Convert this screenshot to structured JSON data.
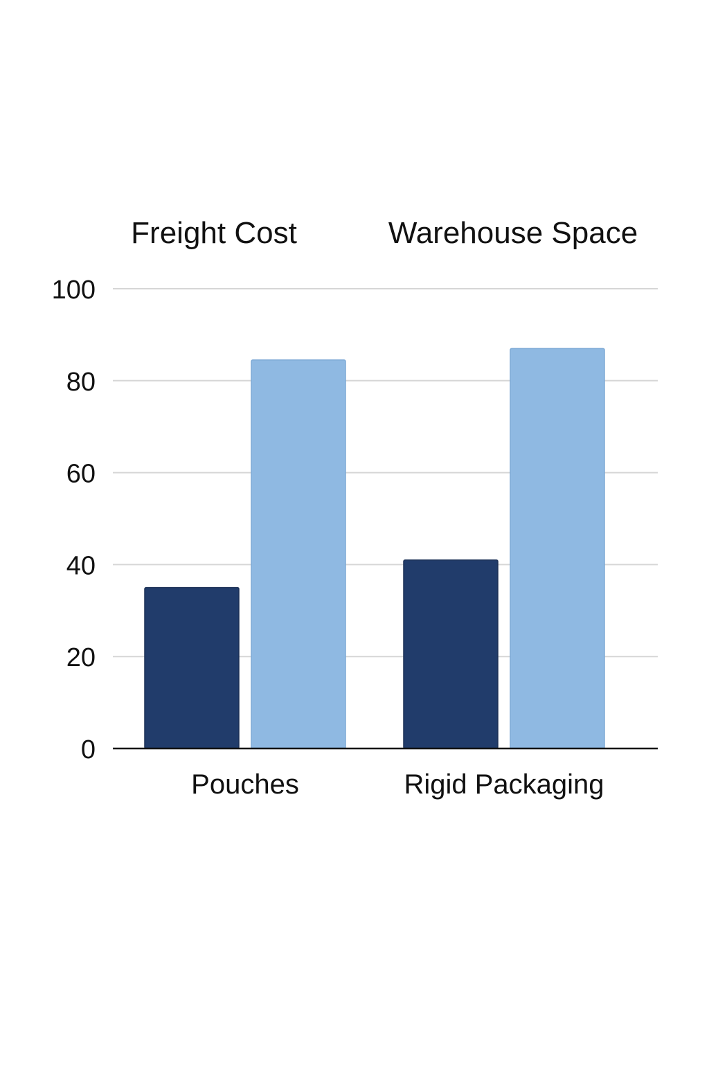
{
  "chart_data": {
    "type": "bar",
    "categories": [
      "Pouches",
      "Rigid Packaging"
    ],
    "series": [
      {
        "name": "Freight Cost",
        "values": [
          35,
          41
        ]
      },
      {
        "name": "Warehouse Space",
        "values": [
          84.5,
          87
        ]
      }
    ],
    "title": "",
    "xlabel": "",
    "ylabel": "",
    "ylim": [
      0,
      100
    ],
    "yticks": [
      "0",
      "20",
      "40",
      "60",
      "80",
      "100"
    ],
    "grid": true,
    "legend": "top",
    "colors": {
      "Freight Cost": "#213c6b",
      "Warehouse Space": "#8fb9e2",
      "gridline": "#d6d6d6",
      "axis": "#111111"
    }
  }
}
